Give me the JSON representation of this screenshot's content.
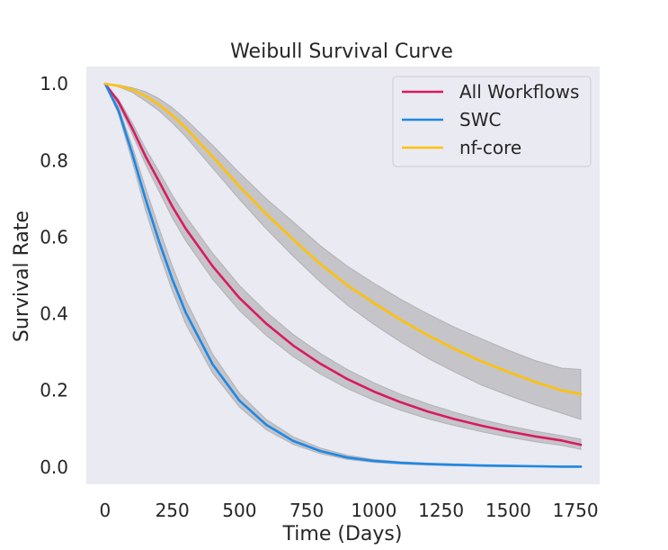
{
  "chart_data": {
    "type": "line",
    "title": "Weibull Survival Curve",
    "xlabel": "Time (Days)",
    "ylabel": "Survival Rate",
    "xlim": [
      -70,
      1840
    ],
    "ylim": [
      -0.045,
      1.045
    ],
    "x_ticks": [
      0,
      250,
      500,
      750,
      1000,
      1250,
      1500,
      1750
    ],
    "y_ticks": [
      0.0,
      0.2,
      0.4,
      0.6,
      0.8,
      1.0
    ],
    "x_tick_labels": [
      "0",
      "250",
      "500",
      "750",
      "1000",
      "1250",
      "1500",
      "1750"
    ],
    "y_tick_labels": [
      "0.0",
      "0.2",
      "0.4",
      "0.6",
      "0.8",
      "1.0"
    ],
    "grid": false,
    "background": "#eaeaf2",
    "band_color": "#8c8c8c",
    "legend_position": "top-right",
    "x": [
      0,
      50,
      100,
      150,
      200,
      250,
      300,
      400,
      500,
      600,
      700,
      800,
      900,
      1000,
      1100,
      1200,
      1300,
      1400,
      1500,
      1600,
      1700,
      1770
    ],
    "series": [
      {
        "name": "All Workflows",
        "color": "#d81b60",
        "values": [
          1.0,
          0.953,
          0.885,
          0.811,
          0.746,
          0.68,
          0.622,
          0.524,
          0.441,
          0.374,
          0.317,
          0.27,
          0.23,
          0.197,
          0.169,
          0.145,
          0.125,
          0.108,
          0.093,
          0.08,
          0.069,
          0.058
        ],
        "lower": [
          1.0,
          0.945,
          0.87,
          0.79,
          0.72,
          0.65,
          0.59,
          0.49,
          0.408,
          0.343,
          0.288,
          0.243,
          0.205,
          0.174,
          0.148,
          0.126,
          0.108,
          0.092,
          0.078,
          0.066,
          0.056,
          0.046
        ],
        "upper": [
          1.0,
          0.96,
          0.9,
          0.832,
          0.772,
          0.71,
          0.655,
          0.558,
          0.474,
          0.405,
          0.346,
          0.297,
          0.255,
          0.22,
          0.19,
          0.165,
          0.143,
          0.124,
          0.108,
          0.094,
          0.082,
          0.073
        ]
      },
      {
        "name": "SWC",
        "color": "#1e88e5",
        "values": [
          1.0,
          0.93,
          0.82,
          0.7,
          0.59,
          0.49,
          0.403,
          0.268,
          0.173,
          0.11,
          0.068,
          0.042,
          0.025,
          0.016,
          0.011,
          0.008,
          0.006,
          0.004,
          0.003,
          0.002,
          0.001,
          0.001
        ],
        "lower": [
          1.0,
          0.92,
          0.8,
          0.67,
          0.56,
          0.46,
          0.373,
          0.245,
          0.156,
          0.097,
          0.059,
          0.035,
          0.02,
          0.012,
          0.008,
          0.005,
          0.003,
          0.002,
          0.001,
          0.001,
          0.0,
          0.0
        ],
        "upper": [
          1.0,
          0.94,
          0.84,
          0.73,
          0.625,
          0.525,
          0.436,
          0.295,
          0.193,
          0.124,
          0.079,
          0.05,
          0.031,
          0.02,
          0.014,
          0.01,
          0.008,
          0.006,
          0.005,
          0.004,
          0.003,
          0.003
        ]
      },
      {
        "name": "nf-core",
        "color": "#ffc107",
        "values": [
          1.0,
          0.995,
          0.985,
          0.968,
          0.946,
          0.918,
          0.885,
          0.81,
          0.732,
          0.66,
          0.594,
          0.53,
          0.475,
          0.428,
          0.384,
          0.344,
          0.308,
          0.276,
          0.248,
          0.222,
          0.2,
          0.19
        ],
        "lower": [
          1.0,
          0.992,
          0.978,
          0.955,
          0.93,
          0.898,
          0.862,
          0.78,
          0.698,
          0.621,
          0.55,
          0.483,
          0.423,
          0.372,
          0.326,
          0.284,
          0.248,
          0.214,
          0.187,
          0.162,
          0.14,
          0.124
        ],
        "upper": [
          1.0,
          0.997,
          0.99,
          0.98,
          0.962,
          0.938,
          0.908,
          0.84,
          0.768,
          0.7,
          0.64,
          0.578,
          0.525,
          0.48,
          0.438,
          0.4,
          0.365,
          0.335,
          0.305,
          0.278,
          0.258,
          0.255
        ]
      }
    ]
  }
}
